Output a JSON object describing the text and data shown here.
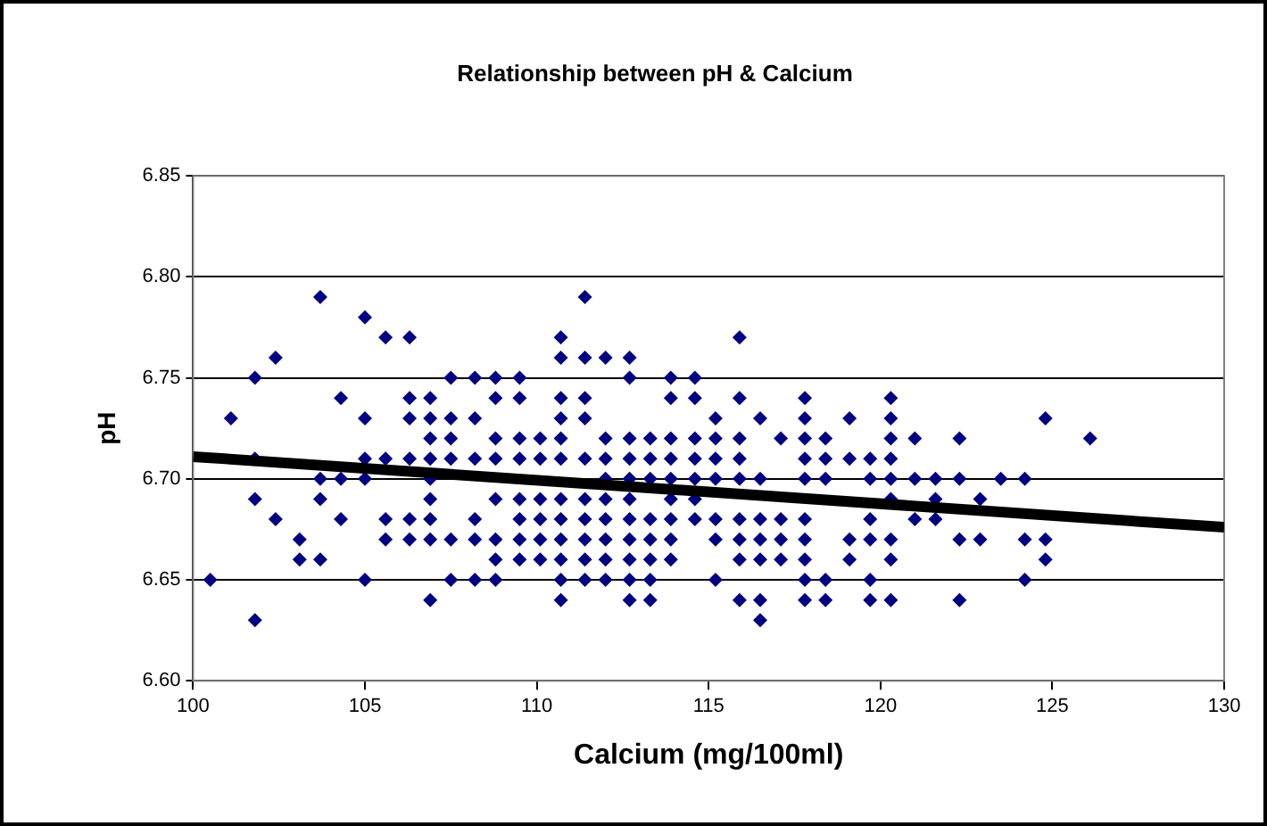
{
  "chart_data": {
    "type": "scatter",
    "title": "Relationship between pH & Calcium",
    "xlabel": "Calcium (mg/100ml)",
    "ylabel": "pH",
    "xlim": [
      100,
      130
    ],
    "xticks": [
      100,
      105,
      110,
      115,
      120,
      125,
      130
    ],
    "ylim": [
      6.6,
      6.85
    ],
    "yticks": [
      {
        "value": 6.6,
        "label": "6.60"
      },
      {
        "value": 6.65,
        "label": "6.65"
      },
      {
        "value": 6.7,
        "label": "6.70"
      },
      {
        "value": 6.75,
        "label": "6.75"
      },
      {
        "value": 6.8,
        "label": "6.80"
      },
      {
        "value": 6.85,
        "label": "6.85"
      }
    ],
    "grid": "y",
    "legend": false,
    "marker": "diamond",
    "series": [
      {
        "color": "#000080",
        "x": [
          100.5,
          101.1,
          101.8,
          101.8,
          101.8,
          101.8,
          102.4,
          102.4,
          103.1,
          103.1,
          103.7,
          103.7,
          103.7,
          103.7,
          104.3,
          104.3,
          104.3,
          105.0,
          105.0,
          105.0,
          105.0,
          105.0,
          105.6,
          105.6,
          105.6,
          105.6,
          106.3,
          106.3,
          106.3,
          106.3,
          106.3,
          106.3,
          106.9,
          106.9,
          106.9,
          106.9,
          106.9,
          106.9,
          106.9,
          106.9,
          106.9,
          107.5,
          107.5,
          107.5,
          107.5,
          107.5,
          107.5,
          108.2,
          108.2,
          108.2,
          108.2,
          108.2,
          108.2,
          108.8,
          108.8,
          108.8,
          108.8,
          108.8,
          108.8,
          108.8,
          108.8,
          109.5,
          109.5,
          109.5,
          109.5,
          109.5,
          109.5,
          109.5,
          109.5,
          110.1,
          110.1,
          110.1,
          110.1,
          110.1,
          110.1,
          110.7,
          110.7,
          110.7,
          110.7,
          110.7,
          110.7,
          110.7,
          110.7,
          110.7,
          110.7,
          110.7,
          110.7,
          111.4,
          111.4,
          111.4,
          111.4,
          111.4,
          111.4,
          111.4,
          111.4,
          111.4,
          111.4,
          112.0,
          112.0,
          112.0,
          112.0,
          112.0,
          112.0,
          112.0,
          112.0,
          112.0,
          112.7,
          112.7,
          112.7,
          112.7,
          112.7,
          112.7,
          112.7,
          112.7,
          112.7,
          112.7,
          112.7,
          113.3,
          113.3,
          113.3,
          113.3,
          113.3,
          113.3,
          113.3,
          113.3,
          113.9,
          113.9,
          113.9,
          113.9,
          113.9,
          113.9,
          113.9,
          113.9,
          113.9,
          114.6,
          114.6,
          114.6,
          114.6,
          114.6,
          114.6,
          114.6,
          115.2,
          115.2,
          115.2,
          115.2,
          115.2,
          115.2,
          115.2,
          115.9,
          115.9,
          115.9,
          115.9,
          115.9,
          115.9,
          115.9,
          115.9,
          115.9,
          116.5,
          116.5,
          116.5,
          116.5,
          116.5,
          116.5,
          116.5,
          117.1,
          117.1,
          117.1,
          117.1,
          117.8,
          117.8,
          117.8,
          117.8,
          117.8,
          117.8,
          117.8,
          117.8,
          117.8,
          117.8,
          118.4,
          118.4,
          118.4,
          118.4,
          118.4,
          119.1,
          119.1,
          119.1,
          119.1,
          119.7,
          119.7,
          119.7,
          119.7,
          119.7,
          119.7,
          120.3,
          120.3,
          120.3,
          120.3,
          120.3,
          120.3,
          120.3,
          120.3,
          120.3,
          121.0,
          121.0,
          121.0,
          121.6,
          121.6,
          121.6,
          122.3,
          122.3,
          122.3,
          122.3,
          122.9,
          122.9,
          123.5,
          124.2,
          124.2,
          124.2,
          124.8,
          124.8,
          124.8,
          126.1
        ],
        "values": [
          6.65,
          6.73,
          6.75,
          6.71,
          6.69,
          6.63,
          6.76,
          6.68,
          6.67,
          6.66,
          6.79,
          6.7,
          6.69,
          6.66,
          6.74,
          6.7,
          6.68,
          6.78,
          6.73,
          6.71,
          6.7,
          6.65,
          6.77,
          6.71,
          6.68,
          6.67,
          6.77,
          6.74,
          6.73,
          6.71,
          6.68,
          6.67,
          6.74,
          6.73,
          6.72,
          6.71,
          6.7,
          6.69,
          6.68,
          6.67,
          6.64,
          6.75,
          6.73,
          6.72,
          6.71,
          6.67,
          6.65,
          6.75,
          6.73,
          6.71,
          6.68,
          6.67,
          6.65,
          6.75,
          6.74,
          6.72,
          6.71,
          6.69,
          6.67,
          6.66,
          6.65,
          6.75,
          6.74,
          6.72,
          6.71,
          6.69,
          6.68,
          6.67,
          6.66,
          6.72,
          6.71,
          6.69,
          6.68,
          6.67,
          6.66,
          6.77,
          6.76,
          6.74,
          6.73,
          6.72,
          6.71,
          6.69,
          6.68,
          6.67,
          6.66,
          6.65,
          6.64,
          6.79,
          6.76,
          6.74,
          6.73,
          6.71,
          6.69,
          6.68,
          6.67,
          6.66,
          6.65,
          6.76,
          6.72,
          6.71,
          6.7,
          6.69,
          6.68,
          6.67,
          6.66,
          6.65,
          6.76,
          6.75,
          6.72,
          6.71,
          6.7,
          6.69,
          6.68,
          6.67,
          6.66,
          6.65,
          6.64,
          6.72,
          6.71,
          6.7,
          6.68,
          6.67,
          6.66,
          6.65,
          6.64,
          6.75,
          6.74,
          6.72,
          6.71,
          6.7,
          6.69,
          6.68,
          6.67,
          6.66,
          6.75,
          6.74,
          6.72,
          6.71,
          6.7,
          6.69,
          6.68,
          6.73,
          6.72,
          6.71,
          6.7,
          6.68,
          6.67,
          6.65,
          6.77,
          6.74,
          6.72,
          6.71,
          6.7,
          6.68,
          6.67,
          6.66,
          6.64,
          6.73,
          6.7,
          6.68,
          6.67,
          6.66,
          6.64,
          6.63,
          6.72,
          6.68,
          6.67,
          6.66,
          6.74,
          6.73,
          6.72,
          6.71,
          6.7,
          6.68,
          6.67,
          6.66,
          6.65,
          6.64,
          6.72,
          6.71,
          6.7,
          6.65,
          6.64,
          6.73,
          6.71,
          6.67,
          6.66,
          6.71,
          6.7,
          6.68,
          6.67,
          6.65,
          6.64,
          6.74,
          6.73,
          6.72,
          6.71,
          6.7,
          6.69,
          6.67,
          6.66,
          6.64,
          6.72,
          6.7,
          6.68,
          6.7,
          6.69,
          6.68,
          6.72,
          6.7,
          6.67,
          6.64,
          6.69,
          6.67,
          6.7,
          6.7,
          6.67,
          6.65,
          6.73,
          6.67,
          6.66,
          6.72
        ]
      },
      {
        "type": "line",
        "color": "#000000",
        "marker": "none",
        "line_style": "solid",
        "x": [
          100,
          130
        ],
        "values": [
          6.711,
          6.676
        ]
      }
    ]
  }
}
